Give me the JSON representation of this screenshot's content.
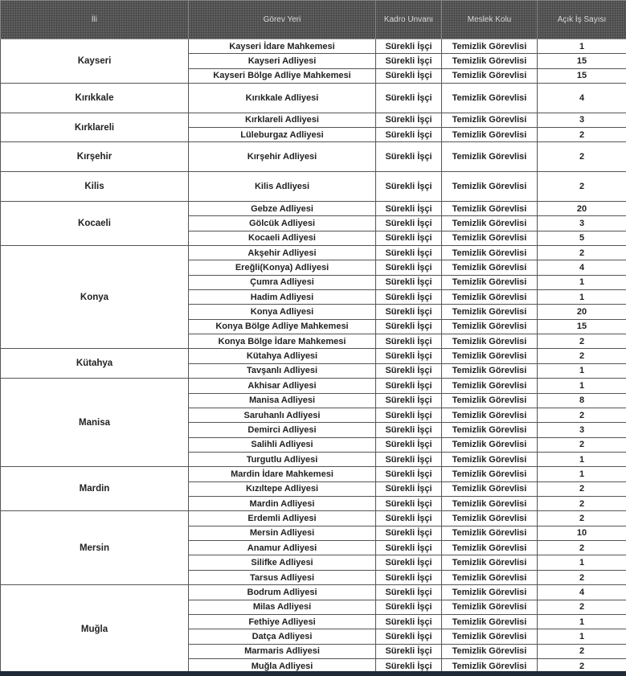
{
  "headers": {
    "il": "İli",
    "gorev_yeri": "Görev Yeri",
    "kadro": "Kadro Unvanı",
    "meslek": "Meslek Kolu",
    "sayi": "Açık İş Sayısı"
  },
  "groups": [
    {
      "il": "Kayseri",
      "tall": false,
      "rows": [
        [
          "Kayseri İdare Mahkemesi",
          "Sürekli İşçi",
          "Temizlik Görevlisi",
          "1"
        ],
        [
          "Kayseri Adliyesi",
          "Sürekli İşçi",
          "Temizlik Görevlisi",
          "15"
        ],
        [
          "Kayseri Bölge Adliye Mahkemesi",
          "Sürekli İşçi",
          "Temizlik Görevlisi",
          "15"
        ]
      ]
    },
    {
      "il": "Kırıkkale",
      "tall": true,
      "rows": [
        [
          "Kırıkkale Adliyesi",
          "Sürekli İşçi",
          "Temizlik Görevlisi",
          "4"
        ]
      ]
    },
    {
      "il": "Kırklareli",
      "tall": false,
      "rows": [
        [
          "Kırklareli Adliyesi",
          "Sürekli İşçi",
          "Temizlik Görevlisi",
          "3"
        ],
        [
          "Lüleburgaz Adliyesi",
          "Sürekli İşçi",
          "Temizlik Görevlisi",
          "2"
        ]
      ]
    },
    {
      "il": "Kırşehir",
      "tall": true,
      "rows": [
        [
          "Kırşehir Adliyesi",
          "Sürekli İşçi",
          "Temizlik Görevlisi",
          "2"
        ]
      ]
    },
    {
      "il": "Kilis",
      "tall": true,
      "rows": [
        [
          "Kilis Adliyesi",
          "Sürekli İşçi",
          "Temizlik Görevlisi",
          "2"
        ]
      ]
    },
    {
      "il": "Kocaeli",
      "tall": false,
      "rows": [
        [
          "Gebze Adliyesi",
          "Sürekli İşçi",
          "Temizlik Görevlisi",
          "20"
        ],
        [
          "Gölcük Adliyesi",
          "Sürekli İşçi",
          "Temizlik Görevlisi",
          "3"
        ],
        [
          "Kocaeli Adliyesi",
          "Sürekli İşçi",
          "Temizlik Görevlisi",
          "5"
        ]
      ]
    },
    {
      "il": "Konya",
      "tall": false,
      "rows": [
        [
          "Akşehir Adliyesi",
          "Sürekli İşçi",
          "Temizlik Görevlisi",
          "2"
        ],
        [
          "Ereğli(Konya) Adliyesi",
          "Sürekli İşçi",
          "Temizlik Görevlisi",
          "4"
        ],
        [
          "Çumra Adliyesi",
          "Sürekli İşçi",
          "Temizlik Görevlisi",
          "1"
        ],
        [
          "Hadim Adliyesi",
          "Sürekli İşçi",
          "Temizlik Görevlisi",
          "1"
        ],
        [
          "Konya Adliyesi",
          "Sürekli İşçi",
          "Temizlik Görevlisi",
          "20"
        ],
        [
          "Konya Bölge Adliye Mahkemesi",
          "Sürekli İşçi",
          "Temizlik Görevlisi",
          "15"
        ],
        [
          "Konya Bölge İdare Mahkemesi",
          "Sürekli İşçi",
          "Temizlik Görevlisi",
          "2"
        ]
      ]
    },
    {
      "il": "Kütahya",
      "tall": false,
      "rows": [
        [
          "Kütahya Adliyesi",
          "Sürekli İşçi",
          "Temizlik Görevlisi",
          "2"
        ],
        [
          "Tavşanlı Adliyesi",
          "Sürekli İşçi",
          "Temizlik Görevlisi",
          "1"
        ]
      ]
    },
    {
      "il": "Manisa",
      "tall": false,
      "rows": [
        [
          "Akhisar Adliyesi",
          "Sürekli İşçi",
          "Temizlik Görevlisi",
          "1"
        ],
        [
          "Manisa Adliyesi",
          "Sürekli İşçi",
          "Temizlik Görevlisi",
          "8"
        ],
        [
          "Saruhanlı Adliyesi",
          "Sürekli İşçi",
          "Temizlik Görevlisi",
          "2"
        ],
        [
          "Demirci Adliyesi",
          "Sürekli İşçi",
          "Temizlik Görevlisi",
          "3"
        ],
        [
          "Salihli Adliyesi",
          "Sürekli İşçi",
          "Temizlik Görevlisi",
          "2"
        ],
        [
          "Turgutlu Adliyesi",
          "Sürekli İşçi",
          "Temizlik Görevlisi",
          "1"
        ]
      ]
    },
    {
      "il": "Mardin",
      "tall": false,
      "rows": [
        [
          "Mardin İdare Mahkemesi",
          "Sürekli İşçi",
          "Temizlik Görevlisi",
          "1"
        ],
        [
          "Kızıltepe Adliyesi",
          "Sürekli İşçi",
          "Temizlik Görevlisi",
          "2"
        ],
        [
          "Mardin Adliyesi",
          "Sürekli İşçi",
          "Temizlik Görevlisi",
          "2"
        ]
      ]
    },
    {
      "il": "Mersin",
      "tall": false,
      "rows": [
        [
          "Erdemli Adliyesi",
          "Sürekli İşçi",
          "Temizlik Görevlisi",
          "2"
        ],
        [
          "Mersin Adliyesi",
          "Sürekli İşçi",
          "Temizlik Görevlisi",
          "10"
        ],
        [
          "Anamur Adliyesi",
          "Sürekli İşçi",
          "Temizlik Görevlisi",
          "2"
        ],
        [
          "Silifke Adliyesi",
          "Sürekli İşçi",
          "Temizlik Görevlisi",
          "1"
        ],
        [
          "Tarsus Adliyesi",
          "Sürekli İşçi",
          "Temizlik Görevlisi",
          "2"
        ]
      ]
    },
    {
      "il": "Muğla",
      "tall": false,
      "rows": [
        [
          "Bodrum Adliyesi",
          "Sürekli İşçi",
          "Temizlik Görevlisi",
          "4"
        ],
        [
          "Milas Adliyesi",
          "Sürekli İşçi",
          "Temizlik Görevlisi",
          "2"
        ],
        [
          "Fethiye Adliyesi",
          "Sürekli İşçi",
          "Temizlik Görevlisi",
          "1"
        ],
        [
          "Datça Adliyesi",
          "Sürekli İşçi",
          "Temizlik Görevlisi",
          "1"
        ],
        [
          "Marmaris Adliyesi",
          "Sürekli İşçi",
          "Temizlik Görevlisi",
          "2"
        ],
        [
          "Muğla Adliyesi",
          "Sürekli İşçi",
          "Temizlik Görevlisi",
          "2"
        ]
      ]
    }
  ]
}
